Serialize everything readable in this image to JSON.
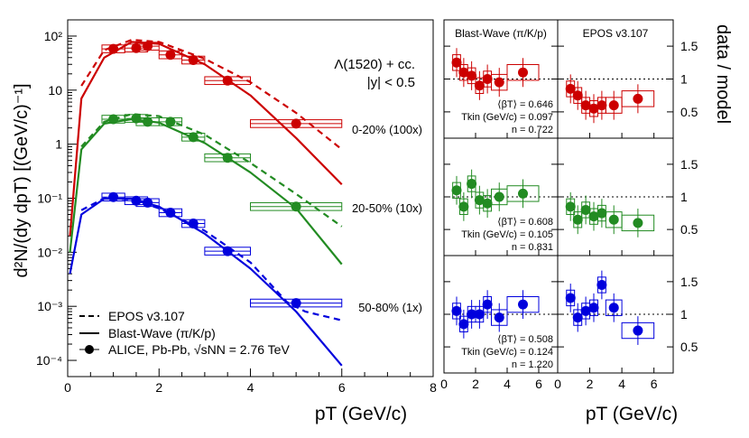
{
  "chart_data": {
    "type": "scatter",
    "main": {
      "ylabel": "d²N/(dy dpT) [(GeV/c)⁻¹]",
      "xlabel": "pT (GeV/c)",
      "title_line1": "Λ(1520) + cc.",
      "title_line2": "|y| < 0.5",
      "xlim": [
        0,
        8
      ],
      "ylim_log10": [
        -4.3,
        2.3
      ],
      "xticks": [
        "0",
        "2",
        "4",
        "6",
        "8"
      ],
      "yticks": [
        "10²",
        "10",
        "1",
        "10⁻¹",
        "10⁻²",
        "10⁻³",
        "10⁻⁴"
      ],
      "series": [
        {
          "name": "0-20% (100x)",
          "label": "0-20% (100x)",
          "color": "#cc0000",
          "x": [
            1.0,
            1.5,
            1.75,
            2.25,
            2.75,
            3.5,
            5.0
          ],
          "xw": [
            0.5,
            0.5,
            0.5,
            0.5,
            0.5,
            1.0,
            2.0
          ],
          "y": [
            58,
            60,
            65,
            45,
            36,
            15,
            2.4
          ],
          "bw_y": [
            [
              0.05,
              0.02
            ],
            [
              0.3,
              7
            ],
            [
              0.8,
              40
            ],
            [
              1.4,
              78
            ],
            [
              2.0,
              72
            ],
            [
              3.0,
              30
            ],
            [
              4.0,
              8
            ],
            [
              5.0,
              1.3
            ],
            [
              6.0,
              0.18
            ]
          ],
          "epos_y": [
            [
              0.3,
              12
            ],
            [
              0.8,
              55
            ],
            [
              1.4,
              85
            ],
            [
              2.0,
              78
            ],
            [
              3.0,
              38
            ],
            [
              4.0,
              14
            ],
            [
              5.0,
              3.8
            ],
            [
              6.0,
              0.8
            ]
          ]
        },
        {
          "name": "20-50% (10x)",
          "label": "20-50% (10x)",
          "color": "#228b22",
          "x": [
            1.0,
            1.5,
            1.75,
            2.25,
            2.75,
            3.5,
            5.0
          ],
          "xw": [
            0.5,
            0.5,
            0.5,
            0.5,
            0.5,
            1.0,
            2.0
          ],
          "y": [
            2.9,
            3.0,
            2.6,
            2.6,
            1.35,
            0.56,
            0.07
          ],
          "bw_y": [
            [
              0.05,
              0.01
            ],
            [
              0.3,
              0.8
            ],
            [
              0.8,
              2.4
            ],
            [
              1.4,
              2.9
            ],
            [
              2.0,
              2.5
            ],
            [
              3.0,
              1.05
            ],
            [
              4.0,
              0.3
            ],
            [
              5.0,
              0.065
            ],
            [
              6.0,
              0.006
            ]
          ],
          "epos_y": [
            [
              0.3,
              0.9
            ],
            [
              0.8,
              2.6
            ],
            [
              1.4,
              3.6
            ],
            [
              2.0,
              3.3
            ],
            [
              3.0,
              1.5
            ],
            [
              4.0,
              0.45
            ],
            [
              5.0,
              0.12
            ],
            [
              6.0,
              0.03
            ]
          ]
        },
        {
          "name": "50-80% (1x)",
          "label": "50-80% (1x)",
          "color": "#0000dd",
          "x": [
            1.0,
            1.5,
            1.75,
            2.25,
            2.75,
            3.5,
            5.0
          ],
          "xw": [
            0.5,
            0.5,
            0.5,
            0.5,
            0.5,
            1.0,
            2.0
          ],
          "y": [
            0.105,
            0.09,
            0.083,
            0.054,
            0.034,
            0.0105,
            0.00115
          ],
          "bw_y": [
            [
              0.05,
              0.004
            ],
            [
              0.3,
              0.05
            ],
            [
              0.8,
              0.098
            ],
            [
              1.4,
              0.098
            ],
            [
              2.0,
              0.07
            ],
            [
              3.0,
              0.022
            ],
            [
              4.0,
              0.005
            ],
            [
              5.0,
              0.0008
            ],
            [
              6.0,
              8e-05
            ]
          ],
          "epos_y": [
            [
              0.3,
              0.06
            ],
            [
              0.8,
              0.1
            ],
            [
              1.4,
              0.095
            ],
            [
              2.0,
              0.065
            ],
            [
              3.0,
              0.025
            ],
            [
              4.0,
              0.0065
            ],
            [
              4.8,
              0.0012
            ],
            [
              5.2,
              0.0008
            ],
            [
              6.0,
              0.00055
            ]
          ]
        }
      ]
    },
    "ratio_panels": {
      "ylabel": "data / model",
      "xlabel": "pT (GeV/c)",
      "ylim": [
        0.1,
        1.9
      ],
      "xlim": [
        0,
        7.2
      ],
      "yticks": [
        "0.5",
        "1",
        "1.5"
      ],
      "xticks": [
        "0",
        "2",
        "4",
        "6"
      ],
      "col_titles": [
        "Blast-Wave (π/K/p)",
        "EPOS v3.107"
      ],
      "params": [
        {
          "beta": "⟨βT⟩ = 0.646",
          "tkin": "Tkin (GeV/c) = 0.097",
          "n": "n = 0.722"
        },
        {
          "beta": "⟨βT⟩ = 0.608",
          "tkin": "Tkin (GeV/c) = 0.105",
          "n": "n = 0.831"
        },
        {
          "beta": "⟨βT⟩ = 0.508",
          "tkin": "Tkin (GeV/c) = 0.124",
          "n": "n = 1.220"
        }
      ],
      "x": [
        0.8,
        1.25,
        1.75,
        2.25,
        2.75,
        3.5,
        5.0
      ],
      "xw": [
        0.5,
        0.5,
        0.5,
        0.5,
        0.5,
        1.0,
        2.0
      ],
      "bw_ratio": [
        [
          1.25,
          1.1,
          1.05,
          0.9,
          1.0,
          0.95,
          1.1
        ],
        [
          1.1,
          0.85,
          1.2,
          0.95,
          0.9,
          1.0,
          1.05
        ],
        [
          1.05,
          0.85,
          1.0,
          1.0,
          1.15,
          0.95,
          1.15
        ]
      ],
      "epos_ratio": [
        [
          0.85,
          0.75,
          0.6,
          0.55,
          0.6,
          0.6,
          0.7
        ],
        [
          0.85,
          0.65,
          0.8,
          0.7,
          0.75,
          0.65,
          0.6
        ],
        [
          1.25,
          0.95,
          1.05,
          1.1,
          1.45,
          1.1,
          0.75
        ]
      ],
      "colors": [
        "#cc0000",
        "#228b22",
        "#0000dd"
      ]
    },
    "legend": {
      "position": "bottom-left",
      "entries": [
        "EPOS v3.107",
        "Blast-Wave (π/K/p)",
        "ALICE, Pb-Pb, √sNN = 2.76 TeV"
      ]
    }
  }
}
